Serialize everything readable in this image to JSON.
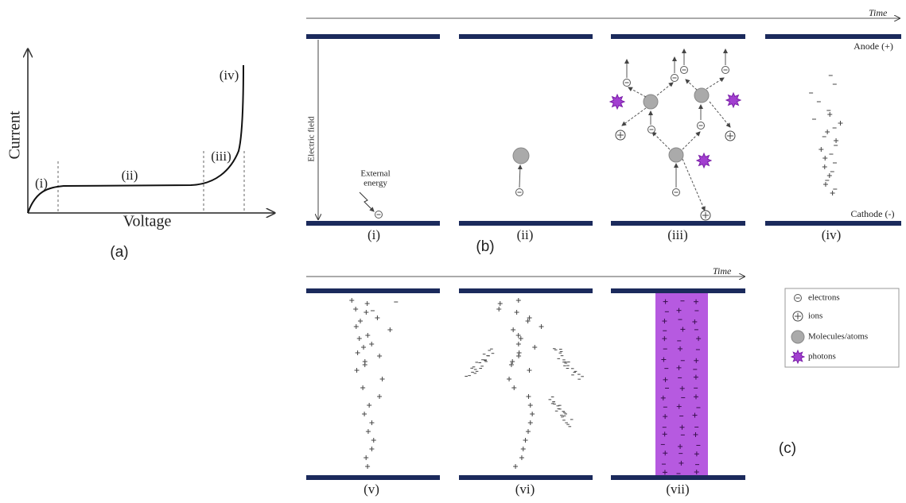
{
  "panel_a": {
    "y_label": "Current",
    "x_label": "Voltage",
    "regions": [
      "(i)",
      "(ii)",
      "(iii)",
      "(iv)"
    ],
    "caption": "(a)"
  },
  "panel_b": {
    "time_label": "Time",
    "anode_label": "Anode (+)",
    "cathode_label": "Cathode (-)",
    "field_label": "Electric field",
    "external_energy": [
      "External",
      "energy"
    ],
    "stages": [
      "(i)",
      "(ii)",
      "(iii)",
      "(iv)"
    ],
    "caption": "(b)"
  },
  "panel_c": {
    "time_label": "Time",
    "stages": [
      "(v)",
      "(vi)",
      "(vii)"
    ],
    "caption": "(c)"
  },
  "legend": {
    "items": [
      "electrons",
      "ions",
      "Molecules/atoms",
      "photons"
    ]
  }
}
